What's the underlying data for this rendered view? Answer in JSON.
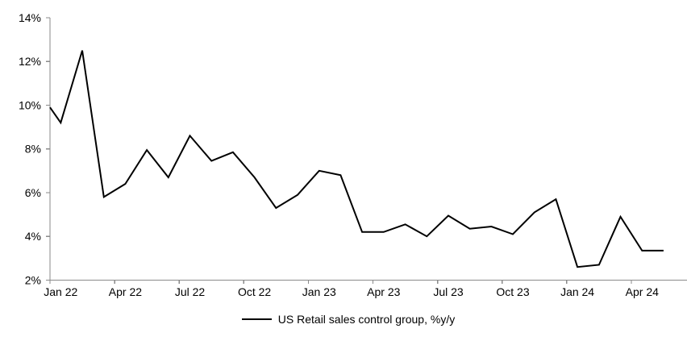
{
  "chart_data": {
    "type": "line",
    "title": "",
    "legend": "US Retail sales control group, %y/y",
    "series_color": "#000000",
    "axis_color": "#8a8a8a",
    "grid": "off",
    "legend_position": "bottom-center",
    "ylim": [
      2,
      14
    ],
    "ytick_step": 2,
    "ytick_suffix": "%",
    "ytick_labels": [
      "2%",
      "4%",
      "6%",
      "8%",
      "10%",
      "12%",
      "14%"
    ],
    "xtick_every_months": 3,
    "xtick_labels": [
      "Jan 22",
      "Apr 22",
      "Jul 22",
      "Oct 22",
      "Jan 23",
      "Apr 23",
      "Jul 23",
      "Oct 23",
      "Jan 24",
      "Apr 24"
    ],
    "months": [
      "Jan 22",
      "Feb 22",
      "Mar 22",
      "Apr 22",
      "May 22",
      "Jun 22",
      "Jul 22",
      "Aug 22",
      "Sep 22",
      "Oct 22",
      "Nov 22",
      "Dec 22",
      "Jan 23",
      "Feb 23",
      "Mar 23",
      "Apr 23",
      "May 23",
      "Jun 23",
      "Jul 23",
      "Aug 23",
      "Sep 23",
      "Oct 23",
      "Nov 23",
      "Dec 23",
      "Jan 24",
      "Feb 24",
      "Mar 24",
      "Apr 24",
      "May 24"
    ],
    "values": [
      9.2,
      12.5,
      5.8,
      6.4,
      7.95,
      6.7,
      8.6,
      7.45,
      7.85,
      6.7,
      5.3,
      5.9,
      7.0,
      6.8,
      4.2,
      4.2,
      4.55,
      4.0,
      4.95,
      4.35,
      4.45,
      4.1,
      5.1,
      5.7,
      2.6,
      2.7,
      4.9,
      3.35,
      3.35
    ],
    "edge_start_value": 9.9
  }
}
